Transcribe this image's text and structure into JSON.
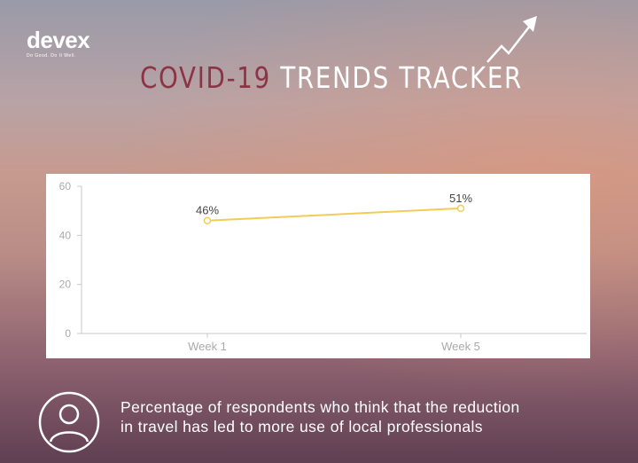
{
  "brand": {
    "wordmark": "devex",
    "tagline": "Do Good. Do It Well."
  },
  "header": {
    "title_part1": "COVID-19",
    "title_part2": " TRENDS TRACKER",
    "trend_icon": "trend-arrow-icon"
  },
  "chart_data": {
    "type": "line",
    "categories": [
      "Week 1",
      "Week 5"
    ],
    "series": [
      {
        "values": [
          46,
          51
        ],
        "labels": [
          "46%",
          "51%"
        ],
        "color": "#f2cc57"
      }
    ],
    "title": "",
    "xlabel": "",
    "ylabel": "",
    "ylim": [
      0,
      60
    ],
    "yticks": [
      0,
      20,
      40,
      60
    ],
    "grid": false,
    "legend": "none"
  },
  "caption": {
    "icon": "person-icon",
    "line1": "Percentage of respondents who think that the reduction",
    "line2": "in travel has led to more use of local professionals"
  },
  "colors": {
    "title_accent": "#8c3346",
    "line": "#f2cc57",
    "axis": "#c8c8c8",
    "tick_text": "#aaaaaa"
  }
}
